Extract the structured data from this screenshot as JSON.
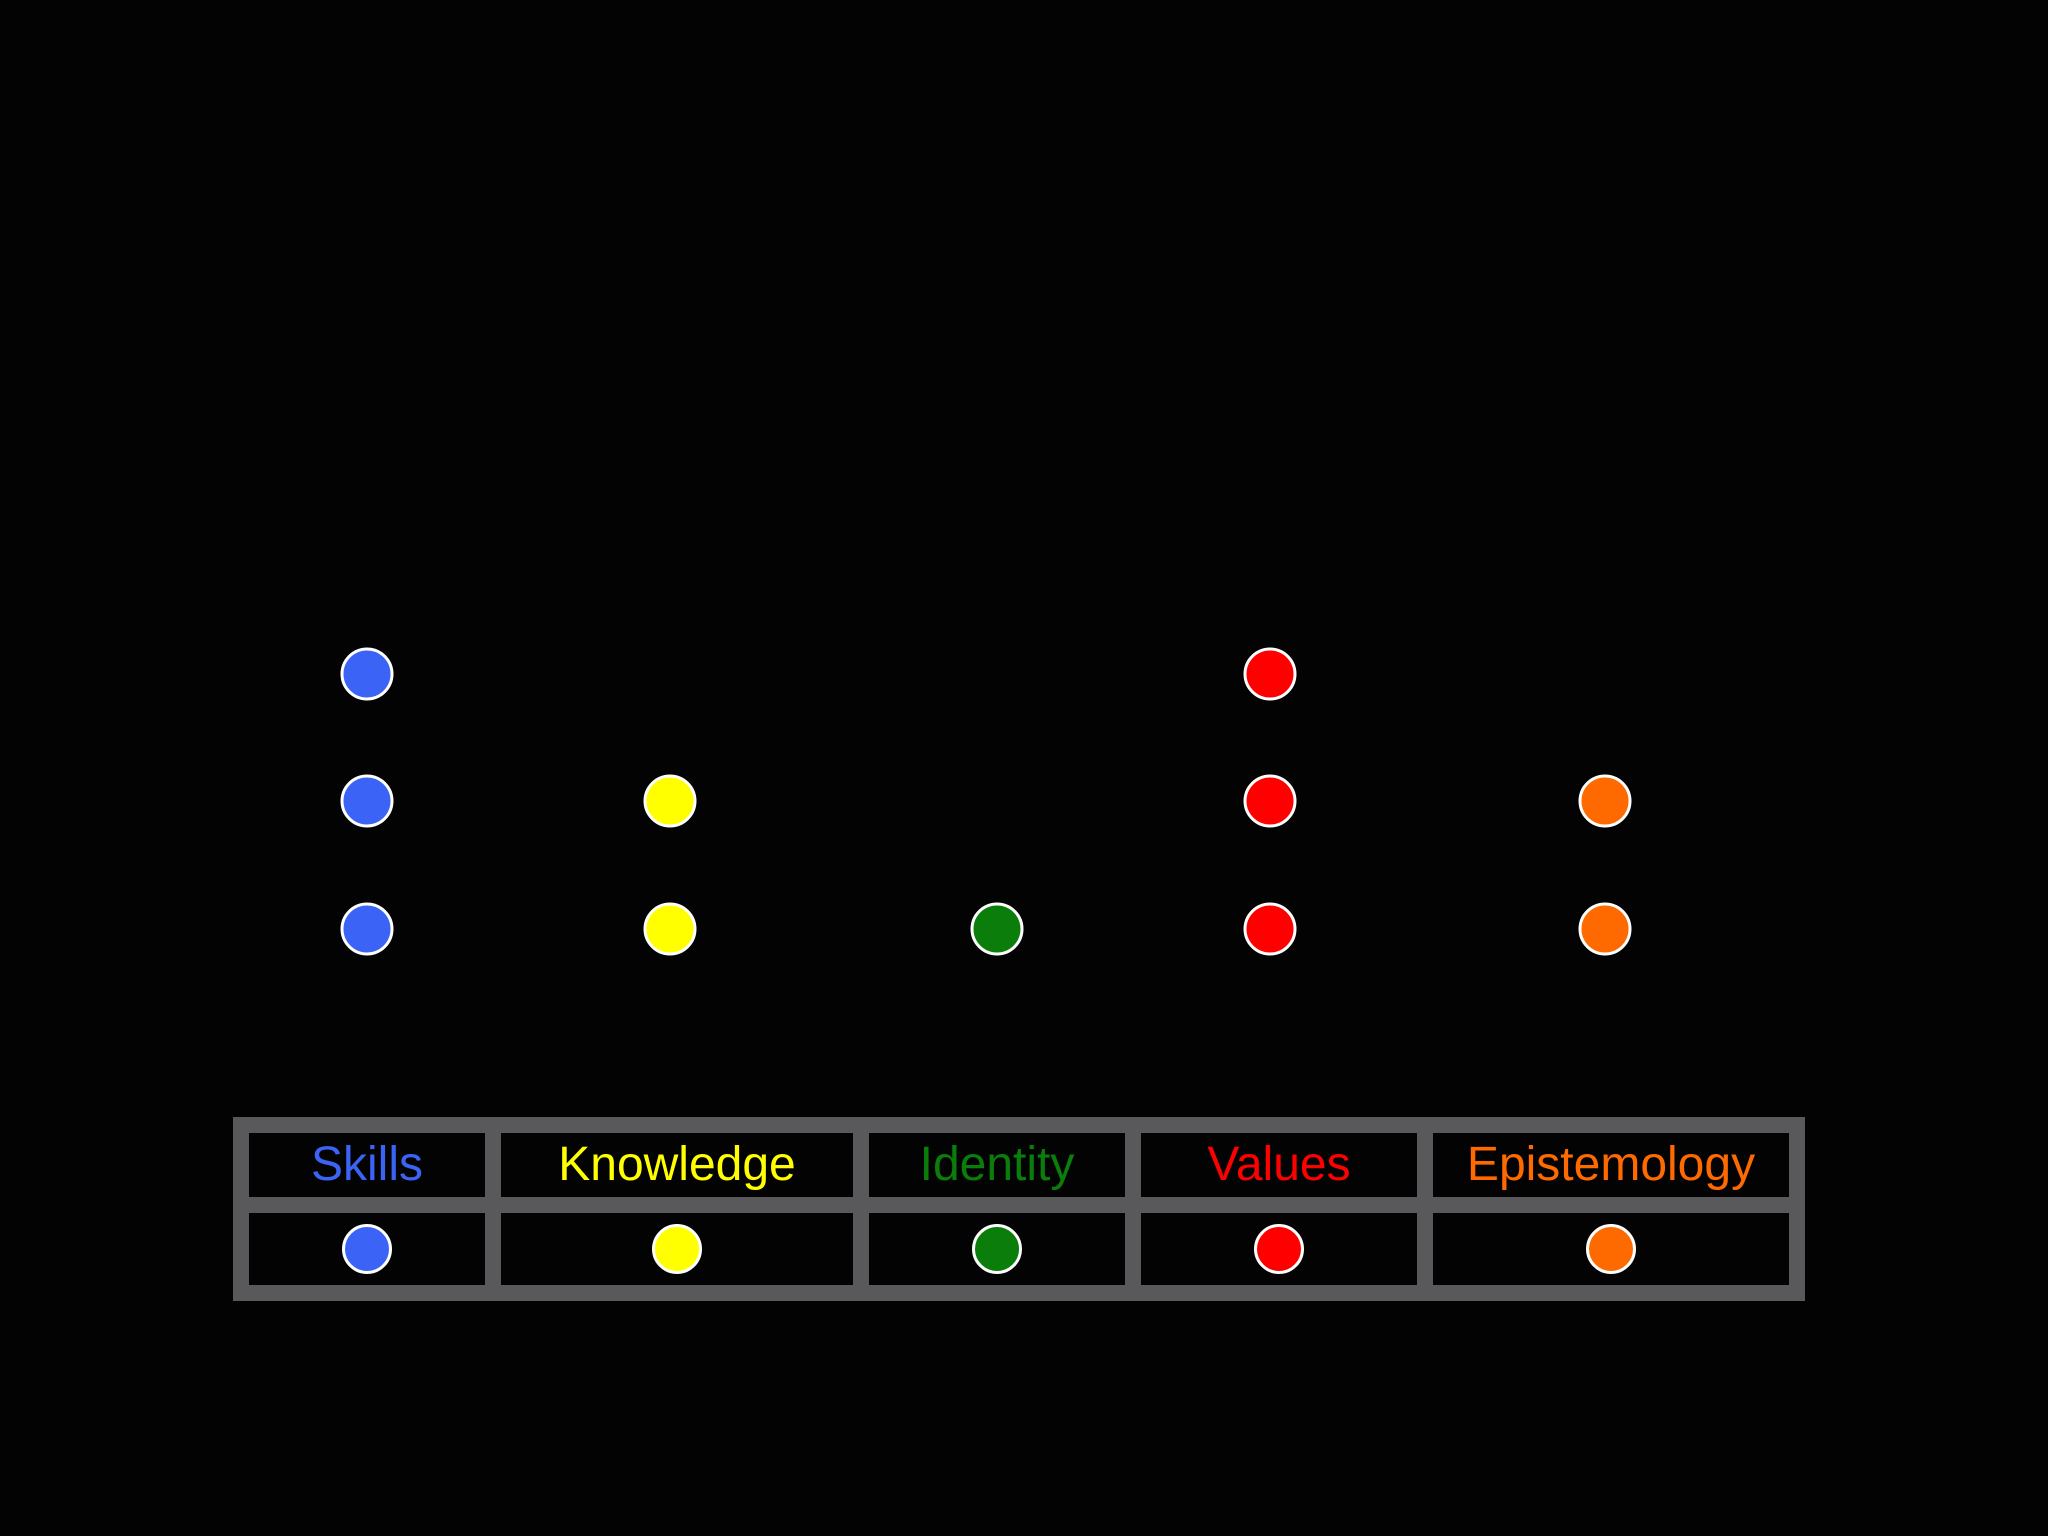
{
  "categories": [
    {
      "key": "skills",
      "label": "Skills",
      "color": "#3b63f5",
      "count": 3
    },
    {
      "key": "knowledge",
      "label": "Knowledge",
      "color": "#ffff00",
      "count": 2
    },
    {
      "key": "identity",
      "label": "Identity",
      "color": "#0a7d0a",
      "count": 1
    },
    {
      "key": "values",
      "label": "Values",
      "color": "#ff0000",
      "count": 3
    },
    {
      "key": "epistemology",
      "label": "Epistemology",
      "color": "#ff6a00",
      "count": 2
    }
  ]
}
